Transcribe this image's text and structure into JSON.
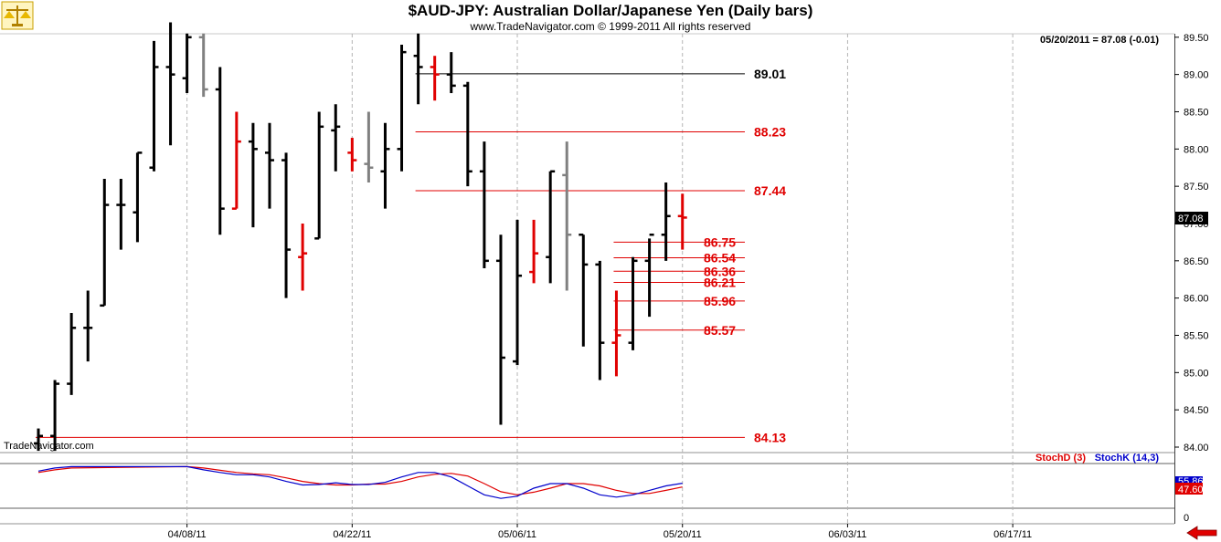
{
  "header": {
    "title": "$AUD-JPY:  Australian Dollar/Japanese Yen  (Daily bars)",
    "copyright": "www.TradeNavigator.com © 1999-2011 All rights reserved",
    "quote": "05/20/2011 = 87.08 (-0.01)",
    "watermark": "TradeNavigator.com"
  },
  "colors": {
    "up": "#000000",
    "down": "#e00000",
    "neutral": "#808080",
    "stochD": "#e00000",
    "stochK": "#0000cc",
    "grid": "#b4b4b4"
  },
  "icons": {
    "logo": "scales-icon",
    "nav": "left-arrow-icon"
  },
  "chart_data": [
    {
      "type": "ohlc",
      "price_ylim": [
        84.0,
        89.55
      ],
      "yticks": [
        "84.00",
        "84.50",
        "85.00",
        "85.50",
        "86.00",
        "86.50",
        "87.00",
        "87.50",
        "88.00",
        "88.50",
        "89.00",
        "89.50"
      ],
      "xticks": [
        "04/08/11",
        "04/22/11",
        "05/06/11",
        "05/20/11",
        "06/03/11",
        "06/17/11"
      ],
      "last_price_label": "87.08",
      "grid": true,
      "bars": [
        {
          "date": "03/28/11",
          "o": 84.05,
          "h": 84.25,
          "l": 83.95,
          "c": 84.15,
          "color": "up"
        },
        {
          "date": "03/29/11",
          "o": 84.15,
          "h": 84.9,
          "l": 83.95,
          "c": 84.85,
          "color": "up"
        },
        {
          "date": "03/30/11",
          "o": 84.85,
          "h": 85.8,
          "l": 84.7,
          "c": 85.6,
          "color": "up"
        },
        {
          "date": "03/31/11",
          "o": 85.6,
          "h": 86.1,
          "l": 85.15,
          "c": 85.6,
          "color": "up"
        },
        {
          "date": "04/01/11",
          "o": 85.9,
          "h": 87.6,
          "l": 85.9,
          "c": 87.25,
          "color": "up"
        },
        {
          "date": "04/04/11",
          "o": 87.25,
          "h": 87.6,
          "l": 86.65,
          "c": 87.25,
          "color": "up"
        },
        {
          "date": "04/05/11",
          "o": 87.15,
          "h": 87.95,
          "l": 86.75,
          "c": 87.95,
          "color": "up"
        },
        {
          "date": "04/06/11",
          "o": 87.75,
          "h": 89.45,
          "l": 87.7,
          "c": 89.1,
          "color": "up"
        },
        {
          "date": "04/07/11",
          "o": 89.1,
          "h": 89.7,
          "l": 88.05,
          "c": 89.0,
          "color": "up"
        },
        {
          "date": "04/08/11",
          "o": 88.95,
          "h": 89.55,
          "l": 88.75,
          "c": 89.5,
          "color": "up"
        },
        {
          "date": "04/11/11",
          "o": 89.5,
          "h": 89.55,
          "l": 88.7,
          "c": 88.8,
          "color": "neutral"
        },
        {
          "date": "04/12/11",
          "o": 88.8,
          "h": 89.1,
          "l": 86.85,
          "c": 87.2,
          "color": "up"
        },
        {
          "date": "04/13/11",
          "o": 87.2,
          "h": 88.5,
          "l": 87.2,
          "c": 88.1,
          "color": "down"
        },
        {
          "date": "04/14/11",
          "o": 88.1,
          "h": 88.35,
          "l": 86.95,
          "c": 88.0,
          "color": "up"
        },
        {
          "date": "04/15/11",
          "o": 87.95,
          "h": 88.35,
          "l": 87.2,
          "c": 87.85,
          "color": "up"
        },
        {
          "date": "04/18/11",
          "o": 87.85,
          "h": 87.95,
          "l": 86.0,
          "c": 86.65,
          "color": "up"
        },
        {
          "date": "04/19/11",
          "o": 86.55,
          "h": 87.0,
          "l": 86.1,
          "c": 86.6,
          "color": "down"
        },
        {
          "date": "04/20/11",
          "o": 86.8,
          "h": 88.5,
          "l": 86.8,
          "c": 88.3,
          "color": "up"
        },
        {
          "date": "04/21/11",
          "o": 88.25,
          "h": 88.6,
          "l": 87.7,
          "c": 88.3,
          "color": "up"
        },
        {
          "date": "04/22/11",
          "o": 87.95,
          "h": 88.15,
          "l": 87.7,
          "c": 87.85,
          "color": "down"
        },
        {
          "date": "04/25/11",
          "o": 87.8,
          "h": 88.5,
          "l": 87.55,
          "c": 87.75,
          "color": "neutral"
        },
        {
          "date": "04/26/11",
          "o": 87.7,
          "h": 88.35,
          "l": 87.2,
          "c": 88.0,
          "color": "up"
        },
        {
          "date": "04/27/11",
          "o": 88.0,
          "h": 89.4,
          "l": 87.7,
          "c": 89.3,
          "color": "up"
        },
        {
          "date": "04/28/11",
          "o": 89.25,
          "h": 89.55,
          "l": 88.6,
          "c": 89.1,
          "color": "up"
        },
        {
          "date": "04/29/11",
          "o": 89.1,
          "h": 89.25,
          "l": 88.65,
          "c": 89.0,
          "color": "down"
        },
        {
          "date": "05/02/11",
          "o": 89.0,
          "h": 89.3,
          "l": 88.75,
          "c": 88.85,
          "color": "up"
        },
        {
          "date": "05/03/11",
          "o": 88.85,
          "h": 88.9,
          "l": 87.5,
          "c": 87.7,
          "color": "up"
        },
        {
          "date": "05/04/11",
          "o": 87.7,
          "h": 88.1,
          "l": 86.4,
          "c": 86.5,
          "color": "up"
        },
        {
          "date": "05/05/11",
          "o": 86.5,
          "h": 86.85,
          "l": 84.3,
          "c": 85.2,
          "color": "up"
        },
        {
          "date": "05/06/11",
          "o": 85.15,
          "h": 87.05,
          "l": 85.1,
          "c": 86.3,
          "color": "up"
        },
        {
          "date": "05/09/11",
          "o": 86.35,
          "h": 87.05,
          "l": 86.2,
          "c": 86.6,
          "color": "down"
        },
        {
          "date": "05/10/11",
          "o": 86.55,
          "h": 87.7,
          "l": 86.2,
          "c": 87.7,
          "color": "up"
        },
        {
          "date": "05/11/11",
          "o": 87.65,
          "h": 88.1,
          "l": 86.1,
          "c": 86.85,
          "color": "neutral"
        },
        {
          "date": "05/12/11",
          "o": 86.85,
          "h": 86.85,
          "l": 85.35,
          "c": 86.45,
          "color": "up"
        },
        {
          "date": "05/13/11",
          "o": 86.45,
          "h": 86.5,
          "l": 84.9,
          "c": 85.4,
          "color": "up"
        },
        {
          "date": "05/16/11",
          "o": 85.4,
          "h": 86.1,
          "l": 84.95,
          "c": 85.5,
          "color": "down"
        },
        {
          "date": "05/17/11",
          "o": 85.4,
          "h": 86.55,
          "l": 85.3,
          "c": 86.5,
          "color": "up"
        },
        {
          "date": "05/18/11",
          "o": 86.5,
          "h": 86.8,
          "l": 85.75,
          "c": 86.85,
          "color": "up"
        },
        {
          "date": "05/19/11",
          "o": 86.85,
          "h": 87.55,
          "l": 86.5,
          "c": 87.1,
          "color": "up"
        },
        {
          "date": "05/20/11",
          "o": 87.1,
          "h": 87.4,
          "l": 86.65,
          "c": 87.08,
          "color": "down"
        }
      ],
      "levels": [
        {
          "value": 89.01,
          "label": "89.01",
          "color": "up",
          "from": "04/28/11"
        },
        {
          "value": 88.23,
          "label": "88.23",
          "color": "down",
          "from": "04/28/11"
        },
        {
          "value": 87.44,
          "label": "87.44",
          "color": "down",
          "from": "04/28/11"
        },
        {
          "value": 86.75,
          "label": "86.75",
          "color": "down",
          "from": "05/16/11"
        },
        {
          "value": 86.54,
          "label": "86.54",
          "color": "down",
          "from": "05/16/11"
        },
        {
          "value": 86.36,
          "label": "86.36",
          "color": "down",
          "from": "05/16/11"
        },
        {
          "value": 86.21,
          "label": "86.21",
          "color": "down",
          "from": "05/16/11"
        },
        {
          "value": 85.96,
          "label": "85.96",
          "color": "down",
          "from": "05/16/11"
        },
        {
          "value": 85.57,
          "label": "85.57",
          "color": "down",
          "from": "05/16/11"
        },
        {
          "value": 84.13,
          "label": "84.13",
          "color": "down",
          "from": "03/28/11"
        }
      ]
    },
    {
      "type": "line",
      "ylim": [
        0,
        100
      ],
      "yticks": [
        "0"
      ],
      "legend": "top-right",
      "value_labels": [
        "55.86",
        "47.60"
      ],
      "series": [
        {
          "name": "StochD (3)",
          "color": "stochD",
          "points": [
            {
              "date": "03/28/11",
              "y": 80
            },
            {
              "date": "03/29/11",
              "y": 86
            },
            {
              "date": "03/30/11",
              "y": 90
            },
            {
              "date": "04/08/11",
              "y": 93
            },
            {
              "date": "04/11/11",
              "y": 90
            },
            {
              "date": "04/12/11",
              "y": 85
            },
            {
              "date": "04/13/11",
              "y": 80
            },
            {
              "date": "04/14/11",
              "y": 77
            },
            {
              "date": "04/15/11",
              "y": 75
            },
            {
              "date": "04/18/11",
              "y": 68
            },
            {
              "date": "04/19/11",
              "y": 60
            },
            {
              "date": "04/20/11",
              "y": 55
            },
            {
              "date": "04/21/11",
              "y": 52
            },
            {
              "date": "04/22/11",
              "y": 52
            },
            {
              "date": "04/25/11",
              "y": 54
            },
            {
              "date": "04/26/11",
              "y": 54
            },
            {
              "date": "04/27/11",
              "y": 60
            },
            {
              "date": "04/28/11",
              "y": 70
            },
            {
              "date": "04/29/11",
              "y": 76
            },
            {
              "date": "05/02/11",
              "y": 78
            },
            {
              "date": "05/03/11",
              "y": 72
            },
            {
              "date": "05/04/11",
              "y": 55
            },
            {
              "date": "05/05/11",
              "y": 37
            },
            {
              "date": "05/06/11",
              "y": 30
            },
            {
              "date": "05/09/11",
              "y": 36
            },
            {
              "date": "05/10/11",
              "y": 45
            },
            {
              "date": "05/11/11",
              "y": 55
            },
            {
              "date": "05/12/11",
              "y": 55
            },
            {
              "date": "05/13/11",
              "y": 50
            },
            {
              "date": "05/16/11",
              "y": 40
            },
            {
              "date": "05/17/11",
              "y": 33
            },
            {
              "date": "05/18/11",
              "y": 33
            },
            {
              "date": "05/19/11",
              "y": 40
            },
            {
              "date": "05/20/11",
              "y": 47.6
            }
          ]
        },
        {
          "name": "StochK (14,3)",
          "color": "stochK",
          "points": [
            {
              "date": "03/28/11",
              "y": 83
            },
            {
              "date": "03/29/11",
              "y": 90
            },
            {
              "date": "03/30/11",
              "y": 93
            },
            {
              "date": "04/08/11",
              "y": 93
            },
            {
              "date": "04/11/11",
              "y": 86
            },
            {
              "date": "04/12/11",
              "y": 80
            },
            {
              "date": "04/13/11",
              "y": 75
            },
            {
              "date": "04/14/11",
              "y": 75
            },
            {
              "date": "04/15/11",
              "y": 70
            },
            {
              "date": "04/18/11",
              "y": 60
            },
            {
              "date": "04/19/11",
              "y": 52
            },
            {
              "date": "04/20/11",
              "y": 53
            },
            {
              "date": "04/21/11",
              "y": 57
            },
            {
              "date": "04/22/11",
              "y": 53
            },
            {
              "date": "04/25/11",
              "y": 53
            },
            {
              "date": "04/26/11",
              "y": 58
            },
            {
              "date": "04/27/11",
              "y": 70
            },
            {
              "date": "04/28/11",
              "y": 80
            },
            {
              "date": "04/29/11",
              "y": 80
            },
            {
              "date": "05/02/11",
              "y": 70
            },
            {
              "date": "05/03/11",
              "y": 50
            },
            {
              "date": "05/04/11",
              "y": 30
            },
            {
              "date": "05/05/11",
              "y": 22
            },
            {
              "date": "05/06/11",
              "y": 27
            },
            {
              "date": "05/09/11",
              "y": 45
            },
            {
              "date": "05/10/11",
              "y": 55
            },
            {
              "date": "05/11/11",
              "y": 55
            },
            {
              "date": "05/12/11",
              "y": 45
            },
            {
              "date": "05/13/11",
              "y": 30
            },
            {
              "date": "05/16/11",
              "y": 25
            },
            {
              "date": "05/17/11",
              "y": 30
            },
            {
              "date": "05/18/11",
              "y": 40
            },
            {
              "date": "05/19/11",
              "y": 50
            },
            {
              "date": "05/20/11",
              "y": 55.86
            }
          ]
        }
      ]
    }
  ]
}
